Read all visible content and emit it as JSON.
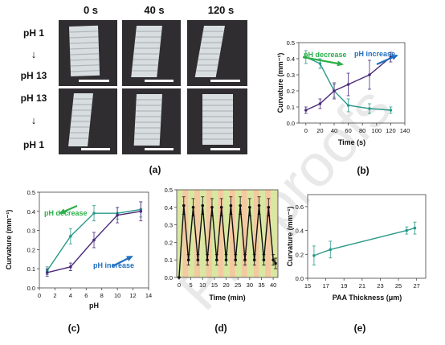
{
  "photos": {
    "column_headers": [
      "0 s",
      "40 s",
      "120 s"
    ],
    "row1_label": [
      "pH 1",
      "↓",
      "pH 13"
    ],
    "row2_label": [
      "pH 13",
      "↓",
      "pH 1"
    ]
  },
  "panel_labels": [
    "(a)",
    "(b)",
    "(c)",
    "(d)",
    "(e)"
  ],
  "watermark": "Pre-proofs",
  "chart_data": [
    {
      "id": "b",
      "type": "line",
      "xlabel": "Time (s)",
      "ylabel": "Curvature (mm⁻¹)",
      "xlim": [
        -10,
        140
      ],
      "ylim": [
        0,
        0.5
      ],
      "xticks": [
        0,
        20,
        40,
        60,
        80,
        100,
        120,
        140
      ],
      "yticks": [
        0.0,
        0.1,
        0.2,
        0.3,
        0.4,
        0.5
      ],
      "annotations": [
        {
          "text": "pH decrease",
          "color": "#2bb04a"
        },
        {
          "text": "pH increase",
          "color": "#1f6fc0"
        }
      ],
      "series": [
        {
          "color": "#2a9a8a",
          "x": [
            0,
            20,
            40,
            60,
            90,
            120
          ],
          "y": [
            0.41,
            0.37,
            0.2,
            0.11,
            0.09,
            0.08
          ],
          "err": [
            0.04,
            0.03,
            0.04,
            0.04,
            0.03,
            0.02
          ]
        },
        {
          "color": "#4b2a7b",
          "x": [
            0,
            20,
            40,
            60,
            90,
            120
          ],
          "y": [
            0.08,
            0.12,
            0.2,
            0.24,
            0.3,
            0.41
          ],
          "err": [
            0.02,
            0.03,
            0.05,
            0.07,
            0.09,
            0.03
          ]
        }
      ]
    },
    {
      "id": "c",
      "type": "line",
      "xlabel": "pH",
      "ylabel": "Curvature (mm⁻¹)",
      "xlim": [
        0,
        14
      ],
      "ylim": [
        0,
        0.5
      ],
      "xticks": [
        0,
        2,
        4,
        6,
        8,
        10,
        12,
        14
      ],
      "yticks": [
        0.0,
        0.1,
        0.2,
        0.3,
        0.4,
        0.5
      ],
      "annotations": [
        {
          "text": "pH decrease",
          "color": "#2bb04a"
        },
        {
          "text": "pH increase",
          "color": "#1f6fc0"
        }
      ],
      "series": [
        {
          "color": "#2a9a8a",
          "x": [
            1,
            4,
            7,
            10,
            13
          ],
          "y": [
            0.09,
            0.27,
            0.39,
            0.39,
            0.41
          ],
          "err": [
            0.02,
            0.04,
            0.04,
            0.03,
            0.04
          ]
        },
        {
          "color": "#4b2a7b",
          "x": [
            1,
            4,
            7,
            10,
            13
          ],
          "y": [
            0.08,
            0.11,
            0.25,
            0.38,
            0.4
          ],
          "err": [
            0.02,
            0.02,
            0.04,
            0.04,
            0.05
          ]
        }
      ]
    },
    {
      "id": "d",
      "type": "line",
      "xlabel": "Time (min)",
      "xlim": [
        -1,
        42
      ],
      "ylim": [
        0,
        0.5
      ],
      "xticks": [
        0,
        5,
        10,
        15,
        20,
        25,
        30,
        35,
        40
      ],
      "yticks": [
        0.0,
        0.1,
        0.2,
        0.3,
        0.4,
        0.5
      ],
      "background_colors": [
        "#d8e8a0",
        "#f3c9a0"
      ],
      "series": [
        {
          "color": "#111111",
          "x": [
            0,
            2,
            4,
            6,
            8,
            10,
            12,
            14,
            16,
            18,
            20,
            22,
            24,
            26,
            28,
            30,
            32,
            34,
            36,
            38,
            40,
            41
          ],
          "y": [
            0.0,
            0.41,
            0.1,
            0.4,
            0.1,
            0.41,
            0.1,
            0.4,
            0.1,
            0.4,
            0.1,
            0.41,
            0.1,
            0.41,
            0.1,
            0.4,
            0.1,
            0.41,
            0.1,
            0.4,
            0.1,
            0.08
          ],
          "err": [
            0.0,
            0.05,
            0.03,
            0.05,
            0.03,
            0.05,
            0.03,
            0.05,
            0.03,
            0.05,
            0.03,
            0.05,
            0.03,
            0.05,
            0.03,
            0.05,
            0.03,
            0.05,
            0.03,
            0.05,
            0.03,
            0.03
          ]
        }
      ]
    },
    {
      "id": "e",
      "type": "line",
      "xlabel": "PAA Thickness (μm)",
      "ylabel": "Curvature (mm⁻¹)",
      "xlim": [
        15,
        28
      ],
      "ylim": [
        0,
        0.7
      ],
      "xticks": [
        15,
        17,
        19,
        21,
        23,
        25,
        27
      ],
      "yticks": [
        0.0,
        0.2,
        0.4,
        0.6
      ],
      "series": [
        {
          "color": "#2a9a8a",
          "x": [
            15.7,
            17.5,
            25.9,
            26.8
          ],
          "y": [
            0.19,
            0.24,
            0.4,
            0.42
          ],
          "err": [
            0.08,
            0.07,
            0.03,
            0.05
          ]
        }
      ]
    }
  ]
}
